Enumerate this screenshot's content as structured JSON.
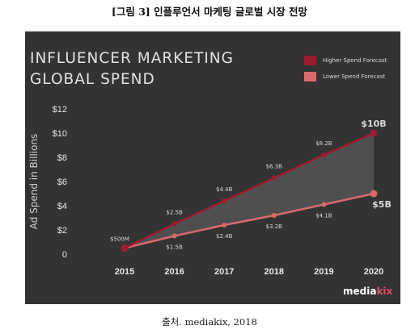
{
  "caption": "[그림 3] 인플루언서 마케팅 글로벌 시장 전망",
  "source": "출처. mediakix, 2018",
  "title_lines": [
    "INFLUENCER MARKETING",
    "GLOBAL SPEND"
  ],
  "logo": {
    "main": "media",
    "accent": "kix"
  },
  "colors": {
    "background": "#333333",
    "higher": "#9b1b30",
    "lower": "#d96a6a",
    "fill": "#555555",
    "text": "#d8d8d8"
  },
  "chart_data": {
    "type": "line",
    "x": [
      2015,
      2016,
      2017,
      2018,
      2019,
      2020
    ],
    "x_tick_labels": [
      "2015",
      "2016",
      "2017",
      "2018",
      "2019",
      "2020"
    ],
    "ylabel": "Ad Spend in Billions",
    "ylim": [
      0,
      12
    ],
    "y_ticks": [
      0,
      2,
      4,
      6,
      8,
      10,
      12
    ],
    "y_tick_labels": [
      "0",
      "$2",
      "$4",
      "$6",
      "$8",
      "$10",
      "$12"
    ],
    "legend_position": "top-right",
    "grid": false,
    "series": [
      {
        "name": "Higher Spend Forecast",
        "color": "#9b1b30",
        "values": [
          0.5,
          2.5,
          4.4,
          6.3,
          8.2,
          10.0
        ],
        "labels": [
          "$500M",
          "$2.5B",
          "$4.4B",
          "$6.3B",
          "$8.2B",
          "$10B"
        ]
      },
      {
        "name": "Lower Spend Forecast",
        "color": "#d96a6a",
        "values": [
          0.5,
          1.5,
          2.4,
          3.2,
          4.1,
          5.0
        ],
        "labels": [
          "",
          "$1.5B",
          "$2.4B",
          "$3.2B",
          "$4.1B",
          "$5B"
        ]
      }
    ]
  }
}
